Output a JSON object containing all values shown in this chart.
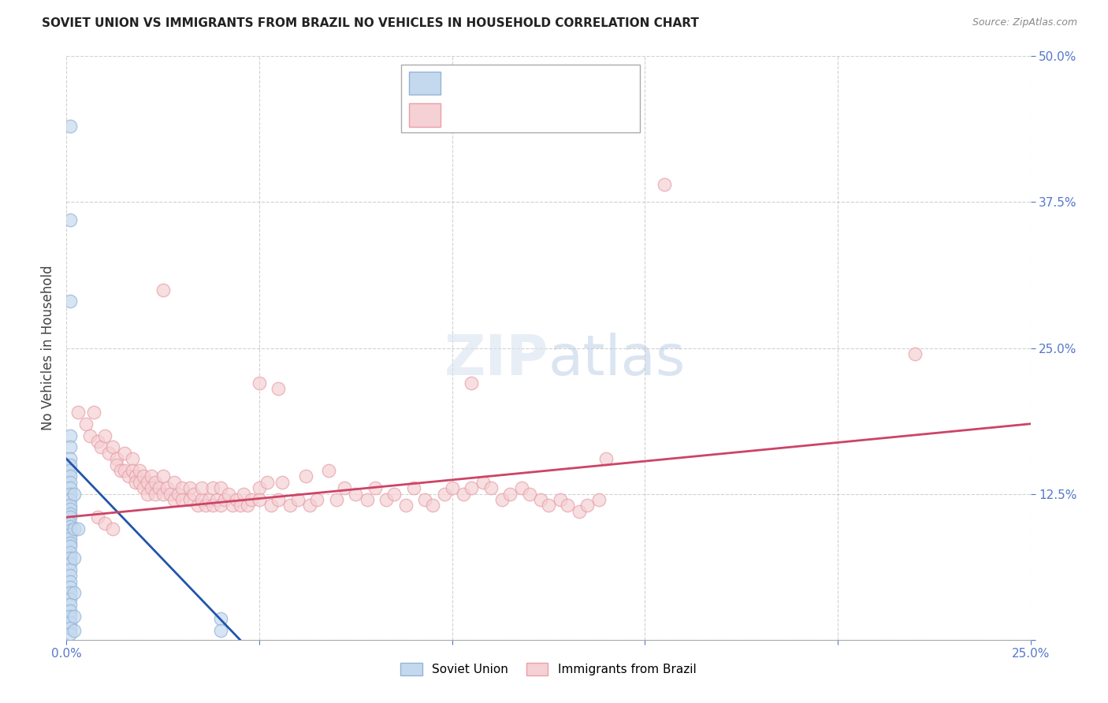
{
  "title": "SOVIET UNION VS IMMIGRANTS FROM BRAZIL NO VEHICLES IN HOUSEHOLD CORRELATION CHART",
  "source": "Source: ZipAtlas.com",
  "ylabel": "No Vehicles in Household",
  "xlim": [
    0.0,
    0.25
  ],
  "ylim": [
    0.0,
    0.5
  ],
  "xticks": [
    0.0,
    0.05,
    0.1,
    0.15,
    0.2,
    0.25
  ],
  "yticks": [
    0.0,
    0.125,
    0.25,
    0.375,
    0.5
  ],
  "soviet_color": "#92b4d8",
  "soviet_fill": "#c5d9ee",
  "brazil_color": "#e8a0a8",
  "brazil_fill": "#f5d0d4",
  "soviet_line_color": "#2255aa",
  "brazil_line_color": "#cc4466",
  "background_color": "#ffffff",
  "grid_color": "#cccccc",
  "tick_color": "#5577cc",
  "watermark": "ZIPatlas",
  "soviet_points": [
    [
      0.001,
      0.44
    ],
    [
      0.001,
      0.36
    ],
    [
      0.001,
      0.29
    ],
    [
      0.001,
      0.175
    ],
    [
      0.001,
      0.165
    ],
    [
      0.001,
      0.155
    ],
    [
      0.001,
      0.15
    ],
    [
      0.001,
      0.145
    ],
    [
      0.001,
      0.14
    ],
    [
      0.001,
      0.135
    ],
    [
      0.001,
      0.13
    ],
    [
      0.001,
      0.125
    ],
    [
      0.001,
      0.12
    ],
    [
      0.001,
      0.115
    ],
    [
      0.001,
      0.112
    ],
    [
      0.001,
      0.108
    ],
    [
      0.001,
      0.105
    ],
    [
      0.001,
      0.1
    ],
    [
      0.001,
      0.097
    ],
    [
      0.001,
      0.094
    ],
    [
      0.001,
      0.09
    ],
    [
      0.001,
      0.087
    ],
    [
      0.001,
      0.083
    ],
    [
      0.001,
      0.08
    ],
    [
      0.001,
      0.075
    ],
    [
      0.001,
      0.07
    ],
    [
      0.001,
      0.065
    ],
    [
      0.001,
      0.06
    ],
    [
      0.001,
      0.055
    ],
    [
      0.001,
      0.05
    ],
    [
      0.001,
      0.045
    ],
    [
      0.001,
      0.04
    ],
    [
      0.001,
      0.035
    ],
    [
      0.001,
      0.03
    ],
    [
      0.001,
      0.025
    ],
    [
      0.001,
      0.02
    ],
    [
      0.001,
      0.015
    ],
    [
      0.001,
      0.01
    ],
    [
      0.001,
      0.005
    ],
    [
      0.002,
      0.125
    ],
    [
      0.002,
      0.095
    ],
    [
      0.002,
      0.07
    ],
    [
      0.002,
      0.04
    ],
    [
      0.002,
      0.02
    ],
    [
      0.002,
      0.008
    ],
    [
      0.003,
      0.095
    ],
    [
      0.04,
      0.018
    ],
    [
      0.04,
      0.008
    ]
  ],
  "brazil_points": [
    [
      0.003,
      0.195
    ],
    [
      0.005,
      0.185
    ],
    [
      0.006,
      0.175
    ],
    [
      0.007,
      0.195
    ],
    [
      0.008,
      0.17
    ],
    [
      0.009,
      0.165
    ],
    [
      0.01,
      0.175
    ],
    [
      0.011,
      0.16
    ],
    [
      0.012,
      0.165
    ],
    [
      0.013,
      0.155
    ],
    [
      0.013,
      0.15
    ],
    [
      0.014,
      0.145
    ],
    [
      0.015,
      0.16
    ],
    [
      0.015,
      0.145
    ],
    [
      0.016,
      0.14
    ],
    [
      0.017,
      0.155
    ],
    [
      0.017,
      0.145
    ],
    [
      0.018,
      0.14
    ],
    [
      0.018,
      0.135
    ],
    [
      0.019,
      0.145
    ],
    [
      0.019,
      0.135
    ],
    [
      0.02,
      0.14
    ],
    [
      0.02,
      0.13
    ],
    [
      0.021,
      0.135
    ],
    [
      0.021,
      0.125
    ],
    [
      0.022,
      0.14
    ],
    [
      0.022,
      0.13
    ],
    [
      0.023,
      0.135
    ],
    [
      0.023,
      0.125
    ],
    [
      0.024,
      0.13
    ],
    [
      0.025,
      0.14
    ],
    [
      0.025,
      0.125
    ],
    [
      0.026,
      0.13
    ],
    [
      0.027,
      0.125
    ],
    [
      0.028,
      0.135
    ],
    [
      0.028,
      0.12
    ],
    [
      0.029,
      0.125
    ],
    [
      0.03,
      0.13
    ],
    [
      0.03,
      0.12
    ],
    [
      0.032,
      0.13
    ],
    [
      0.032,
      0.12
    ],
    [
      0.033,
      0.125
    ],
    [
      0.034,
      0.115
    ],
    [
      0.035,
      0.12
    ],
    [
      0.035,
      0.13
    ],
    [
      0.036,
      0.115
    ],
    [
      0.037,
      0.12
    ],
    [
      0.038,
      0.13
    ],
    [
      0.038,
      0.115
    ],
    [
      0.039,
      0.12
    ],
    [
      0.04,
      0.13
    ],
    [
      0.04,
      0.115
    ],
    [
      0.041,
      0.12
    ],
    [
      0.042,
      0.125
    ],
    [
      0.043,
      0.115
    ],
    [
      0.044,
      0.12
    ],
    [
      0.045,
      0.115
    ],
    [
      0.046,
      0.125
    ],
    [
      0.047,
      0.115
    ],
    [
      0.048,
      0.12
    ],
    [
      0.05,
      0.13
    ],
    [
      0.05,
      0.12
    ],
    [
      0.052,
      0.135
    ],
    [
      0.053,
      0.115
    ],
    [
      0.055,
      0.12
    ],
    [
      0.056,
      0.135
    ],
    [
      0.058,
      0.115
    ],
    [
      0.06,
      0.12
    ],
    [
      0.062,
      0.14
    ],
    [
      0.063,
      0.115
    ],
    [
      0.065,
      0.12
    ],
    [
      0.068,
      0.145
    ],
    [
      0.07,
      0.12
    ],
    [
      0.072,
      0.13
    ],
    [
      0.075,
      0.125
    ],
    [
      0.078,
      0.12
    ],
    [
      0.08,
      0.13
    ],
    [
      0.083,
      0.12
    ],
    [
      0.085,
      0.125
    ],
    [
      0.088,
      0.115
    ],
    [
      0.09,
      0.13
    ],
    [
      0.093,
      0.12
    ],
    [
      0.095,
      0.115
    ],
    [
      0.098,
      0.125
    ],
    [
      0.1,
      0.13
    ],
    [
      0.103,
      0.125
    ],
    [
      0.105,
      0.13
    ],
    [
      0.108,
      0.135
    ],
    [
      0.11,
      0.13
    ],
    [
      0.113,
      0.12
    ],
    [
      0.115,
      0.125
    ],
    [
      0.118,
      0.13
    ],
    [
      0.12,
      0.125
    ],
    [
      0.123,
      0.12
    ],
    [
      0.125,
      0.115
    ],
    [
      0.128,
      0.12
    ],
    [
      0.13,
      0.115
    ],
    [
      0.133,
      0.11
    ],
    [
      0.135,
      0.115
    ],
    [
      0.138,
      0.12
    ],
    [
      0.05,
      0.22
    ],
    [
      0.055,
      0.215
    ],
    [
      0.105,
      0.22
    ],
    [
      0.14,
      0.155
    ],
    [
      0.025,
      0.3
    ],
    [
      0.155,
      0.39
    ],
    [
      0.22,
      0.245
    ],
    [
      0.008,
      0.105
    ],
    [
      0.01,
      0.1
    ],
    [
      0.012,
      0.095
    ]
  ]
}
